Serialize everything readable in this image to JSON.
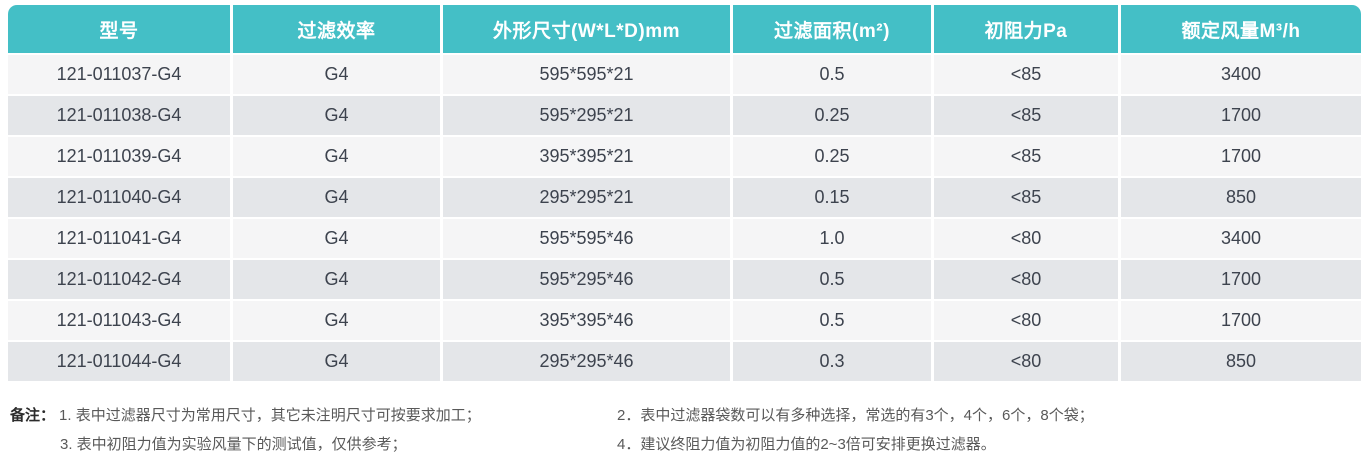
{
  "table": {
    "columns": [
      {
        "label": "型号"
      },
      {
        "label": "过滤效率"
      },
      {
        "label": "外形尺寸(W*L*D)mm"
      },
      {
        "label": "过滤面积(m²)"
      },
      {
        "label": "初阻力Pa"
      },
      {
        "label": "额定风量M³/h"
      }
    ],
    "rows": [
      [
        "121-011037-G4",
        "G4",
        "595*595*21",
        "0.5",
        "<85",
        "3400"
      ],
      [
        "121-011038-G4",
        "G4",
        "595*295*21",
        "0.25",
        "<85",
        "1700"
      ],
      [
        "121-011039-G4",
        "G4",
        "395*395*21",
        "0.25",
        "<85",
        "1700"
      ],
      [
        "121-011040-G4",
        "G4",
        "295*295*21",
        "0.15",
        "<85",
        "850"
      ],
      [
        "121-011041-G4",
        "G4",
        "595*595*46",
        "1.0",
        "<80",
        "3400"
      ],
      [
        "121-011042-G4",
        "G4",
        "595*295*46",
        "0.5",
        "<80",
        "1700"
      ],
      [
        "121-011043-G4",
        "G4",
        "395*395*46",
        "0.5",
        "<80",
        "1700"
      ],
      [
        "121-011044-G4",
        "G4",
        "295*295*46",
        "0.3",
        "<80",
        "850"
      ]
    ]
  },
  "notes": {
    "label": "备注：",
    "left": [
      "1. 表中过滤器尺寸为常用尺寸，其它未注明尺寸可按要求加工；",
      "3. 表中初阻力值为实验风量下的测试值，仅供参考；"
    ],
    "right": [
      "2．表中过滤器袋数可以有多种选择，常选的有3个，4个，6个，8个袋；",
      "4．建议终阻力值为初阻力值的2~3倍可安排更换过滤器。"
    ]
  },
  "colors": {
    "header_bg": "#44bfc6",
    "header_text": "#ffffff",
    "row_odd": "#f5f5f6",
    "row_even": "#e4e6e9",
    "cell_text": "#3d434e",
    "note_text": "#595959"
  }
}
